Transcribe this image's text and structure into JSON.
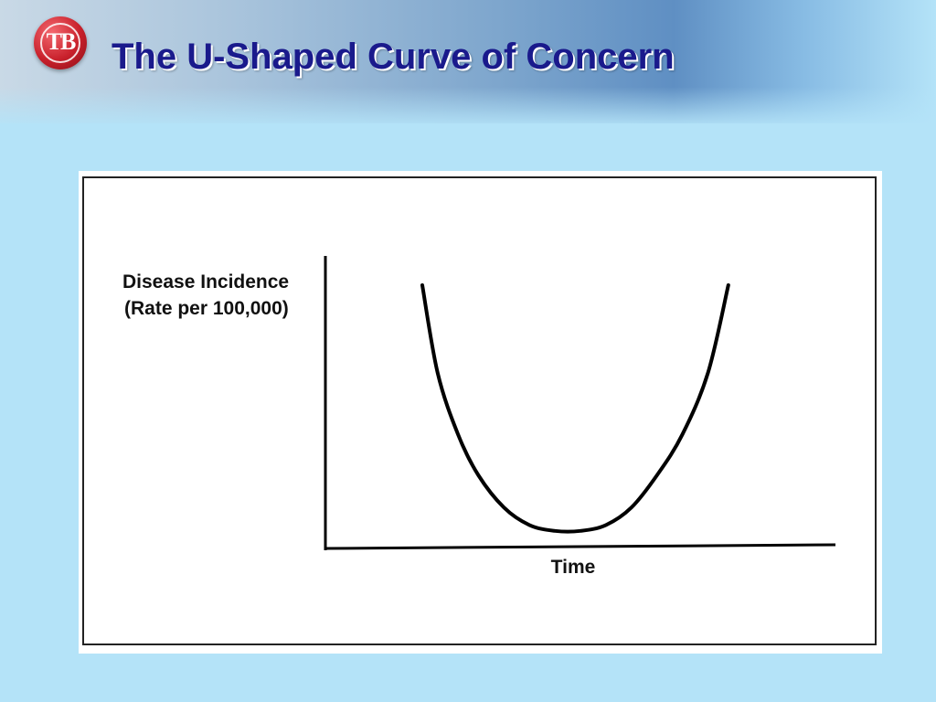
{
  "slide": {
    "title": "The U-Shaped Curve of Concern",
    "logo_text": "TB"
  },
  "colors": {
    "background": "#b4e3f8",
    "title": "#1a1a8c",
    "logo": "#c8202b",
    "curve": "#000000"
  },
  "chart_data": {
    "type": "line",
    "title": "",
    "ylabel_lines": [
      "Disease Incidence",
      "(Rate per 100,000)"
    ],
    "xlabel": "Time",
    "xlim": [
      0,
      10
    ],
    "ylim": [
      0,
      10
    ],
    "grid": false,
    "legend": "none",
    "series": [
      {
        "x": [
          1.9,
          2.2,
          2.6,
          3.0,
          3.5,
          4.0,
          4.5,
          5.0,
          5.5,
          6.0,
          6.5,
          7.0,
          7.5,
          7.9
        ],
        "values": [
          9.0,
          6.0,
          3.9,
          2.5,
          1.4,
          0.8,
          0.6,
          0.6,
          0.8,
          1.4,
          2.5,
          3.9,
          6.0,
          9.0
        ]
      }
    ]
  }
}
